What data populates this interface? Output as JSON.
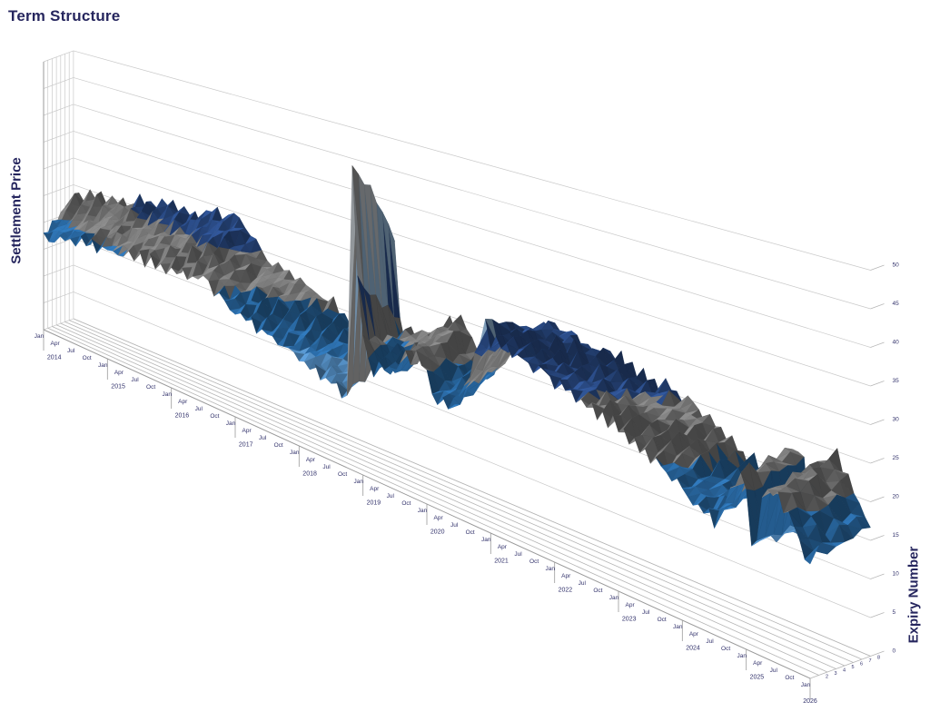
{
  "title": "Term Structure",
  "axes": {
    "z_title": "Settlement Price",
    "y_title": "Expiry Number"
  },
  "chart_data": {
    "type": "surface",
    "title": "Term Structure",
    "ylabel": "Expiry Number",
    "zlabel": "Settlement Price",
    "x_start": "Jan 2014",
    "x_end": "Jan 2026",
    "x_step": "month",
    "month_labels": [
      "Jan",
      "Apr",
      "Jul",
      "Oct"
    ],
    "year_labels": [
      "2014",
      "2015",
      "2016",
      "2017",
      "2018",
      "2019",
      "2020",
      "2021",
      "2022",
      "2023",
      "2024",
      "2025",
      "2026"
    ],
    "expiry_count": 8,
    "expiry_ticks": [
      2,
      3,
      4,
      5,
      6,
      7,
      8
    ],
    "zlim": [
      0,
      50
    ],
    "z_major": 5,
    "z_ticks": [
      0,
      5,
      10,
      15,
      20,
      25,
      30,
      35,
      40,
      45,
      50
    ],
    "band_colors_low_to_high": [
      "#9bc2e6",
      "#6fa8dc",
      "#5b9bd5",
      "#2e75b6",
      "#878787",
      "#2f5496",
      "#9dc3e6",
      "#ccd2d8",
      "#a6a6a6",
      "#4472c4"
    ],
    "front_settlement": [
      17.2,
      17.8,
      16.9,
      18.3,
      17.6,
      18.9,
      18.1,
      19.2,
      18.4,
      19.6,
      18.8,
      19.3,
      19.8,
      18.9,
      20.3,
      19.4,
      20.8,
      19.9,
      21.2,
      20.2,
      21.0,
      20.0,
      20.6,
      19.8,
      20.9,
      19.9,
      21.3,
      20.3,
      21.6,
      20.6,
      21.9,
      20.9,
      20.1,
      19.3,
      18.6,
      17.9,
      17.4,
      18.0,
      16.8,
      17.4,
      16.2,
      16.8,
      15.6,
      16.2,
      15.0,
      15.6,
      14.4,
      15.0,
      14.0,
      14.6,
      13.4,
      14.0,
      12.8,
      13.3,
      12.2,
      12.6,
      11.4,
      11.5,
      49.0,
      30.0,
      22.0,
      18.5,
      17.0,
      18.4,
      17.2,
      18.8,
      17.8,
      20.2,
      21.8,
      20.6,
      22.4,
      21.2,
      19.4,
      17.6,
      16.4,
      17.4,
      16.0,
      17.0,
      18.4,
      20.0,
      22.0,
      24.6,
      27.6,
      31.0,
      28.4,
      29.4,
      27.6,
      28.8,
      27.2,
      28.4,
      26.8,
      28.0,
      26.4,
      27.6,
      26.0,
      27.0,
      25.4,
      26.6,
      24.8,
      26.0,
      24.2,
      25.4,
      23.8,
      24.8,
      23.4,
      24.4,
      22.8,
      23.8,
      22.4,
      23.2,
      21.6,
      22.4,
      20.8,
      21.6,
      20.0,
      20.8,
      19.2,
      20.0,
      18.6,
      19.4,
      17.0,
      18.0,
      16.2,
      17.2,
      15.6,
      16.6,
      15.2,
      16.6,
      18.0,
      20.0,
      21.6,
      22.6,
      21.4,
      13.8,
      15.0,
      21.0,
      22.4,
      21.8,
      22.6,
      21.4,
      20.2,
      18.6,
      17.0,
      15.8,
      15.2
    ],
    "back_minus_front_spread": [
      6,
      6,
      6,
      6,
      6,
      6,
      6,
      6,
      6,
      6,
      6,
      6,
      7,
      7,
      7,
      7,
      7,
      7,
      7,
      7,
      7,
      7,
      7,
      7,
      8,
      8,
      8,
      8,
      8,
      8,
      8,
      7,
      7,
      7,
      6,
      6,
      6,
      6,
      6,
      6,
      6,
      6,
      6,
      6,
      6,
      6,
      6,
      6,
      5,
      5,
      5,
      5,
      5,
      5,
      4,
      4,
      4,
      4,
      -14,
      -8,
      -4,
      3,
      3,
      3,
      3,
      3,
      3,
      3,
      3,
      3,
      3,
      3,
      3,
      3,
      3,
      3,
      3,
      3,
      3,
      3,
      3,
      2,
      -2,
      -3,
      -1,
      -1,
      0,
      1,
      1,
      1,
      1,
      1,
      1,
      1,
      1,
      1,
      2,
      2,
      2,
      2,
      2,
      2,
      2,
      2,
      2,
      2,
      2,
      2,
      3,
      3,
      3,
      3,
      3,
      3,
      3,
      3,
      3,
      3,
      3,
      3,
      3,
      3,
      3,
      3,
      3,
      3,
      3,
      3,
      3,
      2,
      2,
      1,
      1,
      0,
      0,
      0,
      1,
      1,
      2,
      2,
      2,
      2,
      2,
      2,
      2
    ]
  },
  "colors": {
    "title_text": "#26265e",
    "tick_text": "#32326b",
    "gridline": "#c9c9c9",
    "floor_line": "#b5b5b5",
    "axis_line": "#9a9a9a",
    "background": "#ffffff"
  }
}
